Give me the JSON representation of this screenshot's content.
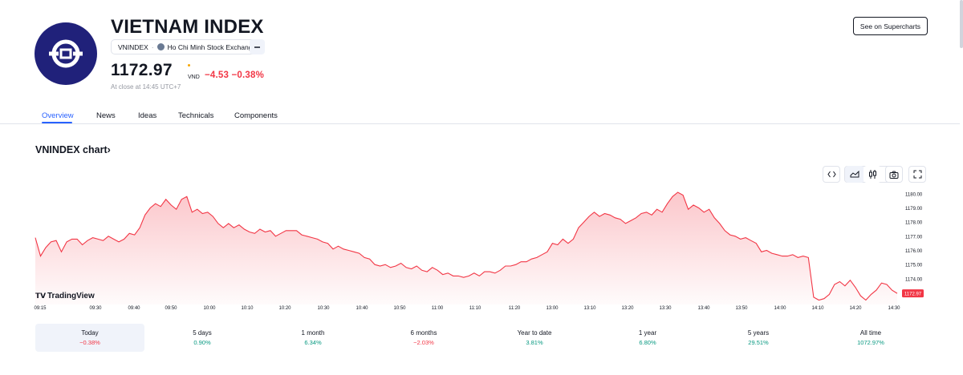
{
  "header": {
    "title": "VIETNAM INDEX",
    "symbol": "VNINDEX",
    "separator": "·",
    "exchange": "Ho Chi Minh Stock Exchange",
    "price": "1172.97",
    "currency": "VND",
    "change": "−4.53 −0.38%",
    "close_note": "At close at 14:45 UTC+7",
    "supercharts_label": "See on Supercharts"
  },
  "tabs": [
    {
      "label": "Overview",
      "active": true
    },
    {
      "label": "News"
    },
    {
      "label": "Ideas"
    },
    {
      "label": "Technicals"
    },
    {
      "label": "Components"
    }
  ],
  "chart_section": {
    "heading": "VNINDEX chart",
    "arrow": "›",
    "watermark": "TradingView",
    "toolbar": [
      "embed-icon",
      "area-chart-icon",
      "candles-icon",
      "camera-icon",
      "fullscreen-icon"
    ],
    "line_color": "#f23645",
    "fill_color": "#f23645"
  },
  "chart_data": {
    "type": "area",
    "x_ticks": [
      "09:15",
      "09:30",
      "09:40",
      "09:50",
      "10:00",
      "10:10",
      "10:20",
      "10:30",
      "10:40",
      "10:50",
      "11:00",
      "11:10",
      "11:20",
      "13:00",
      "13:10",
      "13:20",
      "13:30",
      "13:40",
      "13:50",
      "14:00",
      "14:10",
      "14:20",
      "14:30"
    ],
    "y_ticks": [
      "1180.00",
      "1179.00",
      "1178.00",
      "1177.00",
      "1176.00",
      "1175.00",
      "1174.00"
    ],
    "ylim": [
      1172.3,
      1180.1
    ],
    "last_value_label": "1172.97",
    "series": [
      {
        "values": [
          1176.9,
          1175.6,
          1176.2,
          1176.6,
          1176.7,
          1175.9,
          1176.6,
          1176.8,
          1176.8,
          1176.4,
          1176.7,
          1176.9,
          1176.8,
          1176.7,
          1177.0,
          1176.8,
          1176.6,
          1176.8,
          1177.2,
          1177.1,
          1177.6,
          1178.5,
          1179.0,
          1179.3,
          1179.1,
          1179.6,
          1179.2,
          1178.9,
          1179.6,
          1179.8,
          1178.7,
          1178.9,
          1178.6,
          1178.7,
          1178.4,
          1177.9,
          1177.6,
          1177.9,
          1177.6,
          1177.8,
          1177.5,
          1177.3,
          1177.2,
          1177.5,
          1177.3,
          1177.4,
          1177.0,
          1177.2,
          1177.4,
          1177.4,
          1177.4,
          1177.1,
          1177.0,
          1176.9,
          1176.8,
          1176.6,
          1176.5,
          1176.1,
          1176.3,
          1176.1,
          1176.0,
          1175.9,
          1175.8,
          1175.5,
          1175.4,
          1175.0,
          1174.9,
          1175.0,
          1174.8,
          1174.9,
          1175.1,
          1174.8,
          1174.7,
          1174.9,
          1174.6,
          1174.5,
          1174.8,
          1174.6,
          1174.3,
          1174.4,
          1174.2,
          1174.2,
          1174.1,
          1174.2,
          1174.4,
          1174.2,
          1174.5,
          1174.5,
          1174.4,
          1174.6,
          1174.9,
          1174.9,
          1175.0,
          1175.2,
          1175.2,
          1175.4,
          1175.5,
          1175.7,
          1175.9,
          1176.5,
          1176.4,
          1176.8,
          1176.5,
          1176.8,
          1177.6,
          1178.0,
          1178.4,
          1178.7,
          1178.4,
          1178.6,
          1178.5,
          1178.3,
          1178.2,
          1177.9,
          1178.1,
          1178.3,
          1178.6,
          1178.7,
          1178.5,
          1178.9,
          1178.7,
          1179.3,
          1179.8,
          1180.1,
          1179.9,
          1178.9,
          1179.2,
          1179.0,
          1178.7,
          1178.9,
          1178.3,
          1177.9,
          1177.4,
          1177.1,
          1177.0,
          1176.8,
          1176.9,
          1176.7,
          1176.5,
          1175.9,
          1176.0,
          1175.8,
          1175.7,
          1175.6,
          1175.6,
          1175.7,
          1175.5,
          1175.6,
          1175.5,
          1172.7,
          1172.5,
          1172.6,
          1172.9,
          1173.6,
          1173.8,
          1173.5,
          1173.9,
          1173.4,
          1172.8,
          1172.5,
          1172.9,
          1173.2,
          1173.7,
          1173.6,
          1173.2,
          1172.97
        ]
      }
    ]
  },
  "ranges": [
    {
      "label": "Today",
      "value": "−0.38%",
      "sign": "neg",
      "active": true
    },
    {
      "label": "5 days",
      "value": "0.90%",
      "sign": "pos"
    },
    {
      "label": "1 month",
      "value": "6.34%",
      "sign": "pos"
    },
    {
      "label": "6 months",
      "value": "−2.03%",
      "sign": "neg"
    },
    {
      "label": "Year to date",
      "value": "3.81%",
      "sign": "pos"
    },
    {
      "label": "1 year",
      "value": "6.80%",
      "sign": "pos"
    },
    {
      "label": "5 years",
      "value": "29.51%",
      "sign": "pos"
    },
    {
      "label": "All time",
      "value": "1072.97%",
      "sign": "pos"
    }
  ]
}
